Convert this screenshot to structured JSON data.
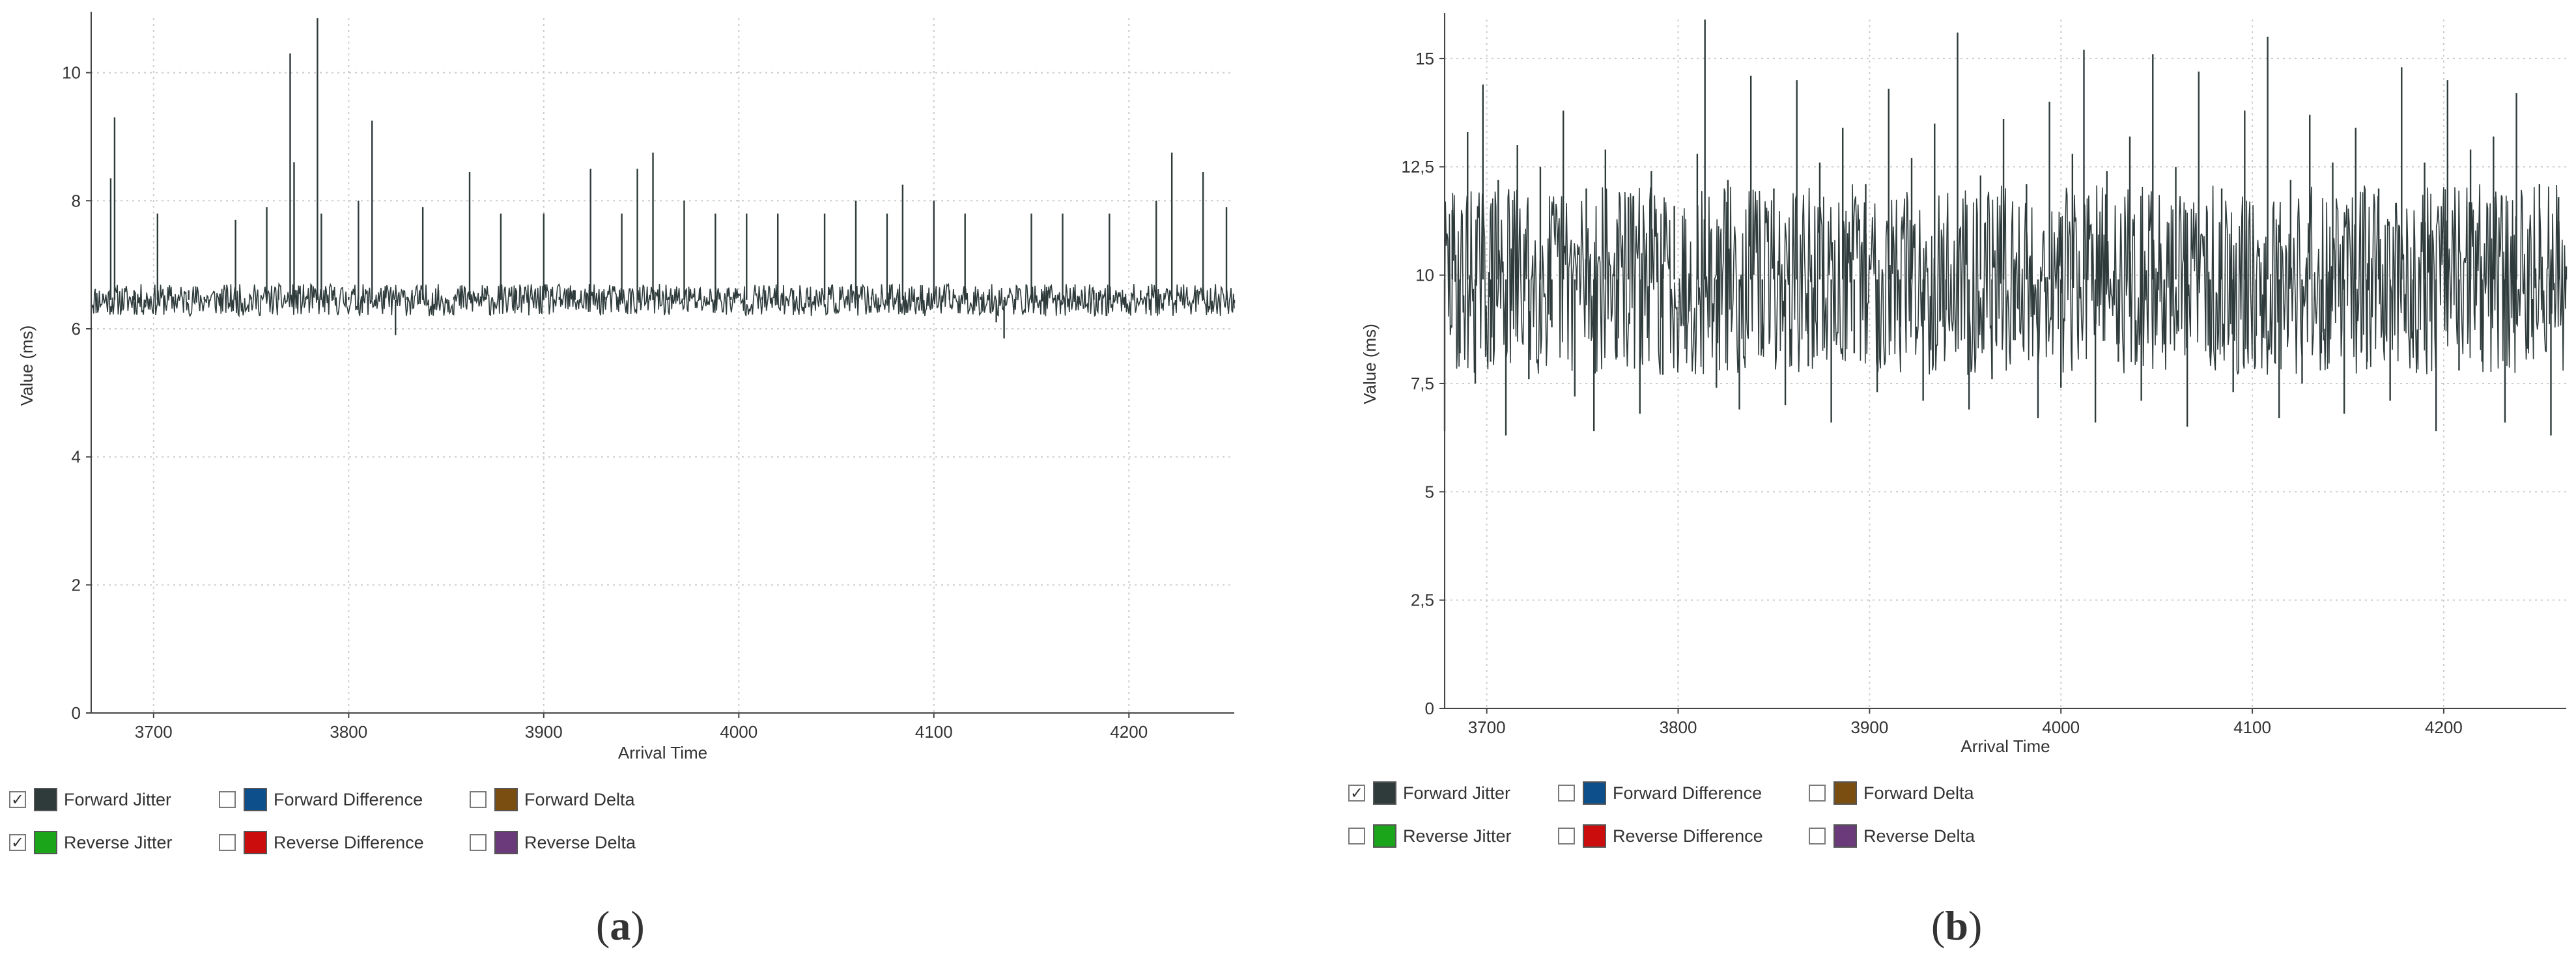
{
  "colors": {
    "forward_jitter": "#2f3b3b",
    "forward_difference": "#0d4f8b",
    "forward_delta": "#7a4d10",
    "reverse_jitter": "#1aa51a",
    "reverse_difference": "#cc0d0d",
    "reverse_delta": "#6a3a7a",
    "grid": "#cccccc",
    "axis": "#444444"
  },
  "chart_data": [
    {
      "panel": "a",
      "type": "line",
      "xlabel": "Arrival Time",
      "ylabel": "Value (ms)",
      "xlim": [
        3668,
        4254
      ],
      "ylim": [
        0,
        10.85
      ],
      "xticks": [
        3700,
        3800,
        3900,
        4000,
        4100,
        4200
      ],
      "yticks": [
        0,
        2,
        4,
        6,
        8,
        10
      ],
      "ytick_labels": [
        "0",
        "2",
        "4",
        "6",
        "8",
        "10"
      ],
      "grid": true,
      "series": [
        {
          "name": "Forward Jitter",
          "points": [
            [
              3668,
              6.45
            ],
            [
              3674,
              6.55
            ],
            [
              3678,
              8.35
            ],
            [
              3680,
              9.3
            ],
            [
              3684,
              6.5
            ],
            [
              3690,
              6.6
            ],
            [
              3696,
              6.4
            ],
            [
              3702,
              7.8
            ],
            [
              3710,
              6.5
            ],
            [
              3718,
              6.6
            ],
            [
              3726,
              6.5
            ],
            [
              3734,
              6.55
            ],
            [
              3742,
              7.7
            ],
            [
              3750,
              6.5
            ],
            [
              3758,
              7.9
            ],
            [
              3764,
              6.6
            ],
            [
              3770,
              10.3
            ],
            [
              3772,
              8.6
            ],
            [
              3778,
              6.5
            ],
            [
              3784,
              10.85
            ],
            [
              3786,
              7.8
            ],
            [
              3792,
              6.6
            ],
            [
              3800,
              6.5
            ],
            [
              3805,
              8.0
            ],
            [
              3812,
              9.25
            ],
            [
              3818,
              6.5
            ],
            [
              3824,
              5.9
            ],
            [
              3830,
              6.5
            ],
            [
              3838,
              7.9
            ],
            [
              3846,
              6.6
            ],
            [
              3854,
              6.5
            ],
            [
              3862,
              8.45
            ],
            [
              3870,
              6.5
            ],
            [
              3878,
              7.8
            ],
            [
              3886,
              6.6
            ],
            [
              3894,
              6.5
            ],
            [
              3900,
              7.8
            ],
            [
              3908,
              6.5
            ],
            [
              3916,
              6.6
            ],
            [
              3924,
              8.5
            ],
            [
              3932,
              6.5
            ],
            [
              3940,
              7.8
            ],
            [
              3948,
              8.5
            ],
            [
              3956,
              8.75
            ],
            [
              3964,
              6.5
            ],
            [
              3972,
              8.0
            ],
            [
              3980,
              6.6
            ],
            [
              3988,
              7.8
            ],
            [
              3996,
              6.5
            ],
            [
              4004,
              7.8
            ],
            [
              4012,
              6.5
            ],
            [
              4020,
              7.8
            ],
            [
              4028,
              6.6
            ],
            [
              4036,
              6.5
            ],
            [
              4044,
              7.8
            ],
            [
              4052,
              6.6
            ],
            [
              4060,
              8.0
            ],
            [
              4068,
              6.5
            ],
            [
              4076,
              7.8
            ],
            [
              4084,
              8.25
            ],
            [
              4092,
              6.5
            ],
            [
              4100,
              8.0
            ],
            [
              4108,
              6.6
            ],
            [
              4116,
              7.8
            ],
            [
              4124,
              6.5
            ],
            [
              4132,
              6.1
            ],
            [
              4136,
              5.85
            ],
            [
              4142,
              6.5
            ],
            [
              4150,
              7.8
            ],
            [
              4158,
              6.6
            ],
            [
              4166,
              7.8
            ],
            [
              4174,
              6.5
            ],
            [
              4182,
              6.6
            ],
            [
              4190,
              7.8
            ],
            [
              4198,
              6.5
            ],
            [
              4206,
              6.6
            ],
            [
              4214,
              8.0
            ],
            [
              4222,
              8.75
            ],
            [
              4230,
              6.5
            ],
            [
              4238,
              8.45
            ],
            [
              4246,
              6.5
            ],
            [
              4250,
              7.9
            ],
            [
              4254,
              6.4
            ]
          ]
        }
      ],
      "legend": [
        {
          "label": "Forward Jitter",
          "checked": true,
          "color_key": "forward_jitter"
        },
        {
          "label": "Forward Difference",
          "checked": false,
          "color_key": "forward_difference"
        },
        {
          "label": "Forward Delta",
          "checked": false,
          "color_key": "forward_delta"
        },
        {
          "label": "Reverse Jitter",
          "checked": true,
          "color_key": "reverse_jitter"
        },
        {
          "label": "Reverse Difference",
          "checked": false,
          "color_key": "reverse_difference"
        },
        {
          "label": "Reverse Delta",
          "checked": false,
          "color_key": "reverse_delta"
        }
      ]
    },
    {
      "panel": "b",
      "type": "line",
      "xlabel": "Arrival Time",
      "ylabel": "Value (ms)",
      "xlim": [
        3678,
        4264
      ],
      "ylim": [
        0,
        15.9
      ],
      "xticks": [
        3700,
        3800,
        3900,
        4000,
        4100,
        4200
      ],
      "yticks": [
        0,
        2.5,
        5,
        7.5,
        10,
        12.5,
        15
      ],
      "ytick_labels": [
        "0",
        "2,5",
        "5",
        "7,5",
        "10",
        "12,5",
        "15"
      ],
      "grid": true,
      "series": [
        {
          "name": "Forward Jitter",
          "points": [
            [
              3678,
              6.4
            ],
            [
              3682,
              11.5
            ],
            [
              3686,
              8.2
            ],
            [
              3690,
              13.3
            ],
            [
              3694,
              7.5
            ],
            [
              3698,
              14.4
            ],
            [
              3702,
              8.0
            ],
            [
              3706,
              12.2
            ],
            [
              3710,
              6.3
            ],
            [
              3716,
              13.0
            ],
            [
              3722,
              7.6
            ],
            [
              3728,
              12.5
            ],
            [
              3734,
              8.8
            ],
            [
              3740,
              13.8
            ],
            [
              3746,
              7.2
            ],
            [
              3752,
              12.0
            ],
            [
              3756,
              6.4
            ],
            [
              3762,
              12.9
            ],
            [
              3768,
              8.1
            ],
            [
              3774,
              11.8
            ],
            [
              3780,
              6.8
            ],
            [
              3786,
              12.4
            ],
            [
              3792,
              7.7
            ],
            [
              3798,
              11.6
            ],
            [
              3804,
              9.0
            ],
            [
              3810,
              12.8
            ],
            [
              3814,
              15.9
            ],
            [
              3820,
              7.4
            ],
            [
              3826,
              12.2
            ],
            [
              3832,
              6.9
            ],
            [
              3838,
              14.6
            ],
            [
              3844,
              8.3
            ],
            [
              3850,
              12.0
            ],
            [
              3856,
              7.0
            ],
            [
              3862,
              14.5
            ],
            [
              3868,
              7.9
            ],
            [
              3874,
              12.6
            ],
            [
              3880,
              6.6
            ],
            [
              3886,
              13.4
            ],
            [
              3892,
              8.2
            ],
            [
              3898,
              12.1
            ],
            [
              3904,
              7.3
            ],
            [
              3910,
              14.3
            ],
            [
              3916,
              8.8
            ],
            [
              3922,
              12.7
            ],
            [
              3928,
              7.1
            ],
            [
              3934,
              13.5
            ],
            [
              3940,
              9.2
            ],
            [
              3946,
              15.6
            ],
            [
              3952,
              6.9
            ],
            [
              3958,
              12.3
            ],
            [
              3964,
              7.6
            ],
            [
              3970,
              13.6
            ],
            [
              3976,
              8.5
            ],
            [
              3982,
              12.1
            ],
            [
              3988,
              6.7
            ],
            [
              3994,
              14.0
            ],
            [
              4000,
              7.4
            ],
            [
              4006,
              12.8
            ],
            [
              4012,
              15.2
            ],
            [
              4018,
              6.6
            ],
            [
              4024,
              12.4
            ],
            [
              4030,
              8.0
            ],
            [
              4036,
              13.2
            ],
            [
              4042,
              7.1
            ],
            [
              4048,
              15.1
            ],
            [
              4054,
              8.4
            ],
            [
              4060,
              12.5
            ],
            [
              4066,
              6.5
            ],
            [
              4072,
              14.7
            ],
            [
              4078,
              8.1
            ],
            [
              4084,
              12.0
            ],
            [
              4090,
              7.3
            ],
            [
              4096,
              13.8
            ],
            [
              4102,
              8.6
            ],
            [
              4108,
              15.5
            ],
            [
              4114,
              6.7
            ],
            [
              4120,
              12.2
            ],
            [
              4126,
              7.5
            ],
            [
              4130,
              13.7
            ],
            [
              4136,
              8.2
            ],
            [
              4142,
              12.6
            ],
            [
              4148,
              6.8
            ],
            [
              4154,
              13.4
            ],
            [
              4160,
              8.0
            ],
            [
              4166,
              12.0
            ],
            [
              4172,
              7.1
            ],
            [
              4178,
              14.8
            ],
            [
              4184,
              8.7
            ],
            [
              4190,
              12.6
            ],
            [
              4196,
              6.4
            ],
            [
              4202,
              14.5
            ],
            [
              4208,
              7.8
            ],
            [
              4214,
              12.9
            ],
            [
              4220,
              8.0
            ],
            [
              4226,
              13.2
            ],
            [
              4232,
              6.6
            ],
            [
              4238,
              14.2
            ],
            [
              4244,
              8.3
            ],
            [
              4250,
              12.1
            ],
            [
              4256,
              6.3
            ],
            [
              4260,
              11.8
            ],
            [
              4264,
              10.2
            ]
          ]
        }
      ],
      "legend": [
        {
          "label": "Forward Jitter",
          "checked": true,
          "color_key": "forward_jitter"
        },
        {
          "label": "Forward Difference",
          "checked": false,
          "color_key": "forward_difference"
        },
        {
          "label": "Forward Delta",
          "checked": false,
          "color_key": "forward_delta"
        },
        {
          "label": "Reverse Jitter",
          "checked": false,
          "color_key": "reverse_jitter"
        },
        {
          "label": "Reverse Difference",
          "checked": false,
          "color_key": "reverse_difference"
        },
        {
          "label": "Reverse Delta",
          "checked": false,
          "color_key": "reverse_delta"
        }
      ]
    }
  ],
  "captions": {
    "a_open": "(",
    "a_letter": "a",
    "a_close": ")",
    "b_open": "(",
    "b_letter": "b",
    "b_close": ")"
  }
}
